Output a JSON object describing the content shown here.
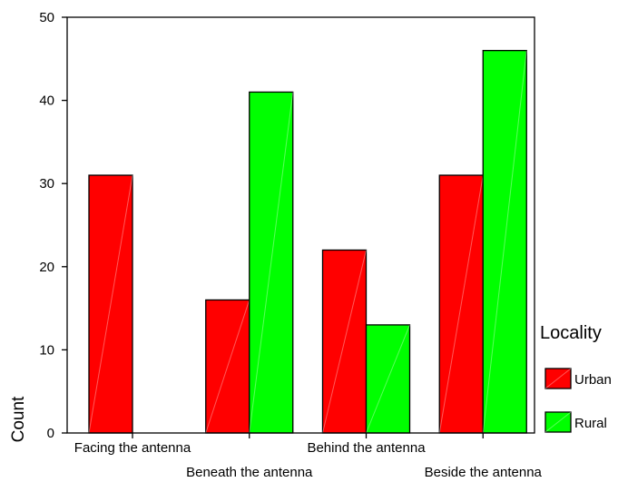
{
  "chart_data": {
    "type": "bar",
    "categories": [
      "Facing the antenna",
      "Beneath the antenna",
      "Behind the antenna",
      "Beside the antenna"
    ],
    "series": [
      {
        "name": "Urban",
        "values": [
          31,
          16,
          22,
          31
        ],
        "color": "#ff0000"
      },
      {
        "name": "Rural",
        "values": [
          0,
          41,
          13,
          46
        ],
        "color": "#00ff00"
      }
    ],
    "title": "",
    "xlabel": "",
    "ylabel": "Count",
    "ylim": [
      0,
      50
    ],
    "yticks": [
      0,
      10,
      20,
      30,
      40,
      50
    ],
    "legend": {
      "title": "Locality",
      "placement": "right"
    },
    "grid": false
  }
}
